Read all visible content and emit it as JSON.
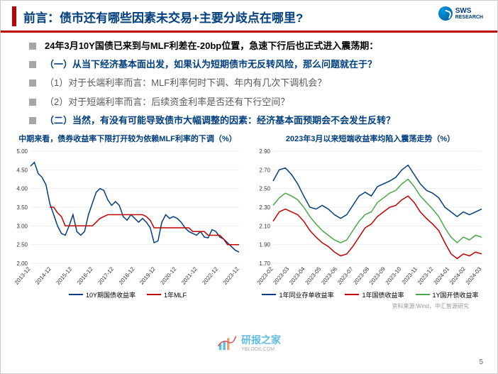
{
  "header": {
    "title": "前言：债市还有哪些因素未交易+主要分歧点在哪里?",
    "logo_main": "SWS",
    "logo_sub": "RESEARCH"
  },
  "bullets": [
    {
      "style": "b-black",
      "text": "24年3月10Y国债已来到与MLF利差在-20bp位置，急速下行后也正式进入震荡期："
    },
    {
      "style": "b-blue",
      "text": "（一）从当下经济基本面出发，如果认为短期债市无反转风险，那么问题就在于？"
    },
    {
      "style": "b-gray",
      "text": "（1）对于长端利率而言：MLF利率何时下调、年内有几次下调机会？"
    },
    {
      "style": "b-gray",
      "text": "（2）对于短端利率而言：后续资金利率是否还有下行空间？"
    },
    {
      "style": "b-blue",
      "text": "（二）当然，有没有可能导致债市大幅调整的因素：经济基本面预期会不会发生反转？"
    }
  ],
  "chartLeft": {
    "title": "中期来看，债券收益率下限打开较为依赖MLF利率的下调（%）",
    "title_color": "#003e7e",
    "ylim": [
      2.0,
      5.0
    ],
    "yticks": [
      "2.00",
      "2.50",
      "3.00",
      "3.50",
      "4.00",
      "4.50",
      "5.00"
    ],
    "xticks": [
      "2013-12",
      "2014-12",
      "2015-12",
      "2016-12",
      "2017-12",
      "2018-12",
      "2019-12",
      "2020-12",
      "2021-12",
      "2022-12",
      "2023-12"
    ],
    "seriesA": {
      "name": "10Y期国债收益率",
      "color": "#003e7e",
      "points": [
        4.6,
        4.7,
        4.4,
        4.3,
        4.1,
        3.6,
        3.3,
        3.0,
        2.8,
        2.75,
        3.0,
        3.3,
        2.85,
        2.75,
        2.85,
        3.3,
        3.6,
        3.9,
        4.0,
        3.95,
        3.7,
        3.55,
        3.65,
        3.55,
        3.25,
        3.15,
        3.3,
        3.2,
        3.1,
        3.2,
        3.1,
        2.95,
        2.55,
        2.6,
        3.1,
        3.3,
        3.2,
        3.25,
        3.2,
        3.1,
        2.95,
        2.85,
        2.8,
        2.75,
        2.85,
        2.7,
        2.68,
        2.9,
        2.85,
        2.7,
        2.65,
        2.55,
        2.45,
        2.35,
        2.3
      ]
    },
    "seriesB": {
      "name": "1年MLF",
      "color": "#c00000",
      "points": [
        null,
        null,
        null,
        null,
        null,
        3.5,
        3.5,
        3.35,
        3.25,
        3.0,
        3.0,
        3.0,
        3.0,
        3.0,
        3.0,
        3.0,
        3.0,
        3.1,
        3.2,
        3.25,
        3.3,
        3.3,
        3.3,
        3.3,
        3.3,
        3.3,
        3.3,
        3.3,
        3.3,
        3.3,
        3.25,
        3.15,
        2.95,
        2.95,
        2.95,
        2.95,
        2.95,
        2.95,
        2.95,
        2.95,
        2.95,
        2.95,
        2.85,
        2.85,
        2.85,
        2.85,
        2.75,
        2.75,
        2.75,
        2.75,
        2.65,
        2.5,
        2.5,
        2.5,
        2.5
      ]
    }
  },
  "chartRight": {
    "title": "2023年3月以来短端收益率均陷入震荡走势（%）",
    "title_color": "#003e7e",
    "ylim": [
      1.7,
      2.9
    ],
    "yticks": [
      "1.70",
      "1.90",
      "2.10",
      "2.30",
      "2.50",
      "2.70",
      "2.90"
    ],
    "xticks": [
      "2023-02",
      "2023-03",
      "2023-04",
      "2023-05",
      "2023-06",
      "2023-07",
      "2023-08",
      "2023-09",
      "2023-10",
      "2023-11",
      "2023-12",
      "2024-01",
      "2024-02",
      "2024-03"
    ],
    "seriesA": {
      "name": "1年同业存单收益率",
      "color": "#003e7e",
      "points": [
        2.58,
        2.7,
        2.72,
        2.65,
        2.55,
        2.42,
        2.3,
        2.28,
        2.32,
        2.28,
        2.22,
        2.18,
        2.22,
        2.32,
        2.42,
        2.46,
        2.42,
        2.52,
        2.55,
        2.58,
        2.62,
        2.7,
        2.75,
        2.65,
        2.55,
        2.48,
        2.45,
        2.4,
        2.3,
        2.25,
        2.2,
        2.25,
        2.22,
        2.25,
        2.28
      ]
    },
    "seriesB": {
      "name": "1年国债收益率",
      "color": "#c00000",
      "points": [
        2.15,
        2.25,
        2.28,
        2.25,
        2.22,
        2.15,
        2.05,
        1.98,
        1.92,
        1.88,
        1.82,
        1.78,
        1.8,
        1.88,
        1.98,
        2.08,
        2.12,
        2.2,
        2.25,
        2.3,
        2.32,
        2.38,
        2.42,
        2.35,
        2.25,
        2.18,
        2.12,
        2.05,
        1.92,
        1.8,
        1.75,
        1.8,
        1.78,
        1.82,
        1.8
      ]
    },
    "seriesC": {
      "name": "1Y国开债收益率",
      "color": "#4aa84a",
      "points": [
        2.32,
        2.4,
        2.45,
        2.42,
        2.38,
        2.3,
        2.2,
        2.12,
        2.05,
        2.0,
        1.95,
        1.92,
        1.95,
        2.05,
        2.15,
        2.22,
        2.25,
        2.35,
        2.4,
        2.45,
        2.48,
        2.55,
        2.6,
        2.52,
        2.42,
        2.35,
        2.28,
        2.2,
        2.08,
        1.98,
        1.92,
        1.98,
        1.95,
        2.0,
        1.98
      ]
    }
  },
  "source": "资料来源:Wind，中汇智源研究",
  "pageNumber": "5",
  "watermark": {
    "text": "研报之家",
    "sub": "YBLOOK.COM"
  }
}
